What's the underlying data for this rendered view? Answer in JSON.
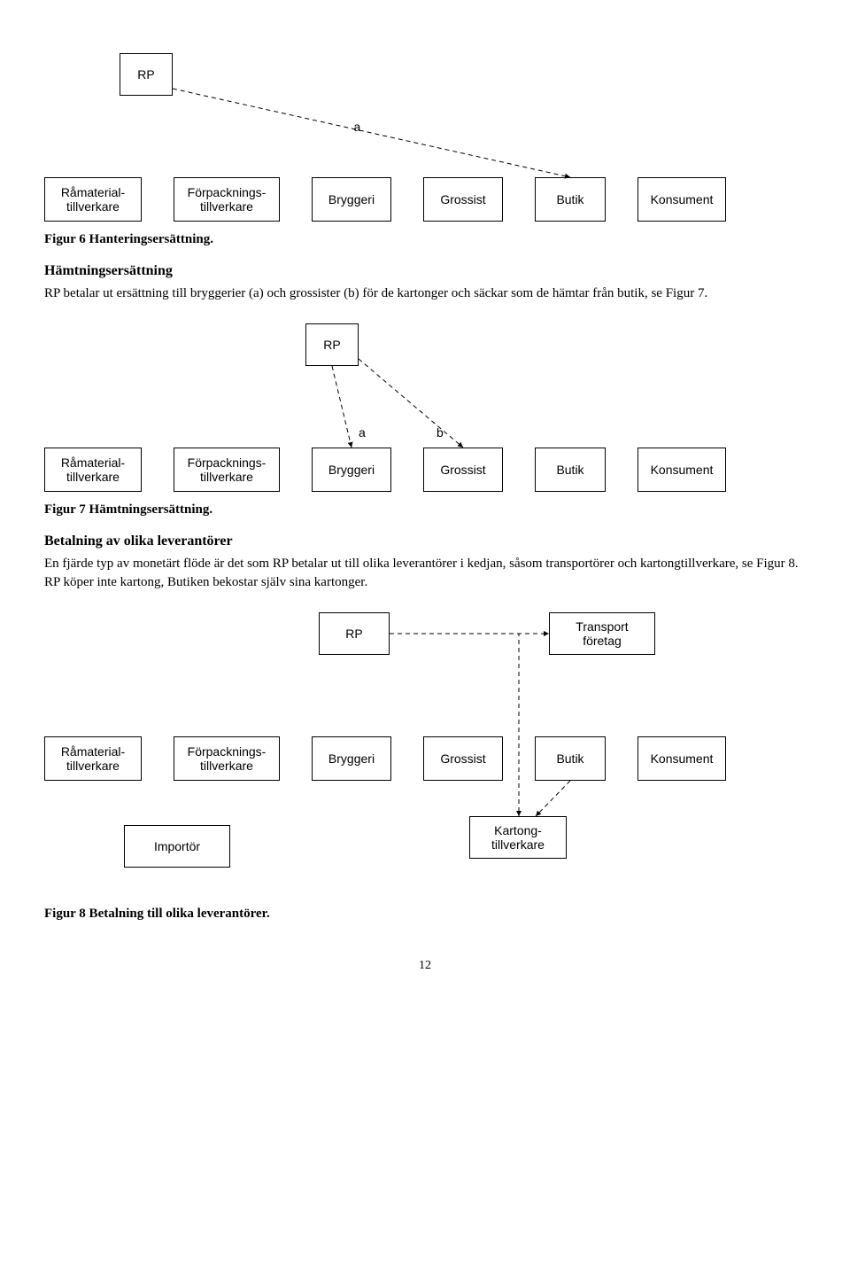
{
  "fig6": {
    "rp": "RP",
    "edgeLabel": "a",
    "nodes": [
      "Råmaterial-\ntillverkare",
      "Förpacknings-\ntillverkare",
      "Bryggeri",
      "Grossist",
      "Butik",
      "Konsument"
    ],
    "caption": "Figur 6 Hanteringsersättning."
  },
  "section1": {
    "title": "Hämtningsersättning",
    "body": "RP betalar ut ersättning till bryggerier (a) och grossister (b) för de kartonger och säckar som de hämtar från butik, se Figur 7."
  },
  "fig7": {
    "rp": "RP",
    "labA": "a",
    "labB": "b",
    "nodes": [
      "Råmaterial-\ntillverkare",
      "Förpacknings-\ntillverkare",
      "Bryggeri",
      "Grossist",
      "Butik",
      "Konsument"
    ],
    "caption": "Figur 7 Hämtningsersättning."
  },
  "section2": {
    "title": "Betalning av olika leverantörer",
    "body": "En fjärde typ av monetärt flöde är det som RP betalar ut till olika leverantörer i kedjan, såsom transportörer och kartongtillverkare, se Figur 8. RP köper inte kartong, Butiken bekostar själv sina kartonger."
  },
  "fig8": {
    "rp": "RP",
    "transport": "Transport\nföretag",
    "nodes": [
      "Råmaterial-\ntillverkare",
      "Förpacknings-\ntillverkare",
      "Bryggeri",
      "Grossist",
      "Butik",
      "Konsument"
    ],
    "importer": "Importör",
    "kartong": "Kartong-\ntillverkare",
    "caption": "Figur 8 Betalning till olika leverantörer."
  },
  "pageNumber": "12",
  "style": {
    "dashColor": "#000000",
    "dash": "5,4",
    "lineWidth": 1
  }
}
